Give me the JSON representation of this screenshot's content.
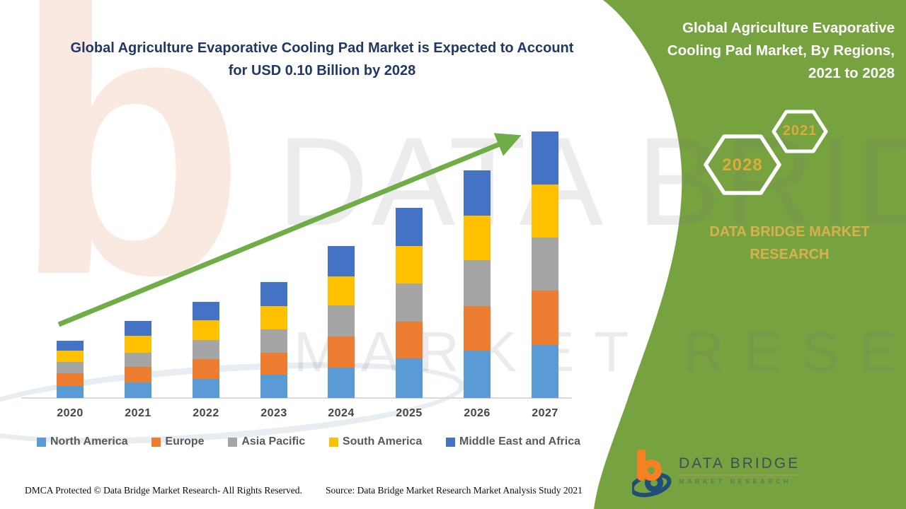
{
  "page": {
    "main_title": "Global Agriculture Evaporative Cooling Pad Market is Expected to Account for USD 0.10 Billion by 2028",
    "footer": {
      "dmca": "DMCA Protected © Data Bridge Market Research- All Rights Reserved.",
      "source": "Source: Data Bridge Market Research Market Analysis Study 2021"
    }
  },
  "side_panel": {
    "title": "Global Agriculture Evaporative Cooling Pad Market, By Regions, 2021 to 2028",
    "hexagon_labels": [
      "2028",
      "2021"
    ],
    "brand": "DATA BRIDGE MARKET RESEARCH",
    "colors": {
      "panel_green": "#76a240",
      "gold_text": "#dcab39",
      "brand_gold": "#d9b14c"
    }
  },
  "logo": {
    "name": "DATA BRIDGE",
    "sub": "MARKET RESEARCH",
    "colors": {
      "orange": "#f58220",
      "navy": "#1f4e79"
    }
  },
  "watermark": {
    "line1": "DATA BRIDGE",
    "line2": "MARKET RESEARCH",
    "logo_glyph": "b"
  },
  "chart_data": {
    "type": "bar",
    "stacked": true,
    "title": "",
    "xlabel": "",
    "ylabel": "",
    "units": "relative market size index (no value axis shown in figure; 2027 total = 100)",
    "grid": false,
    "legend_position": "bottom",
    "categories": [
      "2020",
      "2021",
      "2022",
      "2023",
      "2024",
      "2025",
      "2026",
      "2027"
    ],
    "series": [
      {
        "name": "North America",
        "color": "#5b9bd5",
        "values": [
          4.5,
          5.8,
          7.2,
          8.8,
          11.4,
          14.9,
          17.8,
          19.9
        ]
      },
      {
        "name": "Europe",
        "color": "#ed7d31",
        "values": [
          4.8,
          5.8,
          7.4,
          8.2,
          11.7,
          13.8,
          16.7,
          20.4
        ]
      },
      {
        "name": "Asia Pacific",
        "color": "#a5a5a5",
        "values": [
          4.2,
          5.3,
          7.2,
          8.8,
          11.7,
          14.3,
          17.2,
          19.9
        ]
      },
      {
        "name": "South America",
        "color": "#ffc000",
        "values": [
          4.2,
          6.4,
          7.4,
          8.8,
          10.9,
          14.1,
          16.7,
          19.9
        ]
      },
      {
        "name": "Middle East and Africa",
        "color": "#4472c4",
        "values": [
          3.7,
          5.6,
          6.9,
          8.8,
          11.4,
          14.3,
          17.0,
          19.9
        ]
      }
    ],
    "totals_by_year": [
      21.4,
      28.9,
      36.1,
      43.4,
      57.1,
      71.4,
      85.4,
      100.0
    ],
    "trend_arrow": {
      "present": true,
      "color": "#70ad47",
      "direction": "up-right"
    }
  }
}
